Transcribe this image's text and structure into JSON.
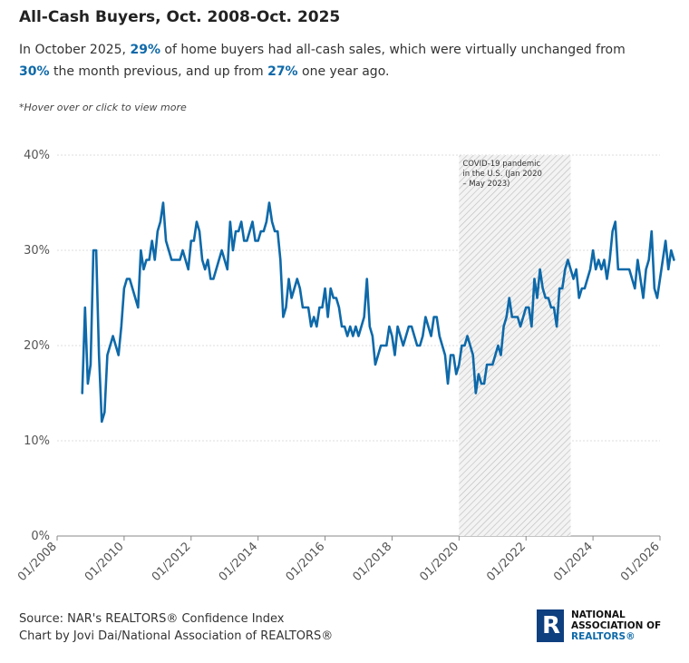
{
  "header": {
    "title": "All-Cash Buyers, Oct. 2008-Oct. 2025",
    "subtitle_parts": {
      "p1": "In October 2025, ",
      "h1": "29%",
      "p2": " of home buyers had all-cash sales, which were virtually unchanged from ",
      "h2": "30%",
      "p3": " the month previous, and up from ",
      "h3": "27%",
      "p4": " one year ago."
    },
    "hint": "*Hover over or click to view more"
  },
  "footer": {
    "source": "Source: NAR's REALTORS® Confidence Index",
    "credit": "Chart by Jovi Dai/National Association of REALTORS®"
  },
  "logo": {
    "mark": "R",
    "line1": "NATIONAL",
    "line2": "ASSOCIATION OF",
    "line3": "REALTORS®"
  },
  "colors": {
    "line": "#0e69a9",
    "highlight": "#0e69a9",
    "shade_hatch": "#bbbbbb",
    "gridline": "#dddddd",
    "logo_blue": "#0e3f7f"
  },
  "chart_data": {
    "type": "line",
    "title": "All-Cash Buyers, Oct. 2008-Oct. 2025",
    "xlabel": "",
    "ylabel": "",
    "y_unit": "%",
    "ylim": [
      0,
      40
    ],
    "yticks": [
      0,
      10,
      20,
      30,
      40
    ],
    "ytick_labels": [
      "0%",
      "10%",
      "20%",
      "30%",
      "40%"
    ],
    "x_start": "2008-10",
    "x_end": "2025-10",
    "xlim": [
      "2008-01",
      "2026-01"
    ],
    "xticks": [
      "2008-01",
      "2010-01",
      "2012-01",
      "2014-01",
      "2016-01",
      "2018-01",
      "2020-01",
      "2022-01",
      "2024-01",
      "2026-01"
    ],
    "xtick_labels": [
      "01/2008",
      "01/2010",
      "01/2012",
      "01/2014",
      "01/2016",
      "01/2018",
      "01/2020",
      "01/2022",
      "01/2024",
      "01/2026"
    ],
    "grid": "y",
    "shaded_period": {
      "start": "2020-01",
      "end": "2023-05",
      "label_lines": [
        "COVID-19 pandemic",
        "in the U.S. (Jan 2020",
        "– May 2023)"
      ]
    },
    "series": [
      {
        "values": [
          15,
          24,
          16,
          18,
          30,
          30,
          19,
          12,
          13,
          19,
          20,
          21,
          20,
          19,
          22,
          26,
          27,
          27,
          26,
          25,
          24,
          30,
          28,
          29,
          29,
          31,
          29,
          32,
          33,
          35,
          31,
          30,
          29,
          29,
          29,
          29,
          30,
          29,
          28,
          31,
          31,
          33,
          32,
          29,
          28,
          29,
          27,
          27,
          28,
          29,
          30,
          29,
          28,
          33,
          30,
          32,
          32,
          33,
          31,
          31,
          32,
          33,
          31,
          31,
          32,
          32,
          33,
          35,
          33,
          32,
          32,
          29,
          23,
          24,
          27,
          25,
          26,
          27,
          26,
          24,
          24,
          24,
          22,
          23,
          22,
          24,
          24,
          26,
          23,
          26,
          25,
          25,
          24,
          22,
          22,
          21,
          22,
          21,
          22,
          21,
          22,
          23,
          27,
          22,
          21,
          18,
          19,
          20,
          20,
          20,
          22,
          21,
          19,
          22,
          21,
          20,
          21,
          22,
          22,
          21,
          20,
          20,
          21,
          23,
          22,
          21,
          23,
          23,
          21,
          20,
          19,
          16,
          19,
          19,
          17,
          18,
          20,
          20,
          21,
          20,
          19,
          15,
          17,
          16,
          16,
          18,
          18,
          18,
          19,
          20,
          19,
          22,
          23,
          25,
          23,
          23,
          23,
          22,
          23,
          24,
          24,
          22,
          27,
          25,
          28,
          26,
          25,
          25,
          24,
          24,
          22,
          26,
          26,
          28,
          29,
          28,
          27,
          28,
          25,
          26,
          26,
          27,
          28,
          30,
          28,
          29,
          28,
          29,
          27,
          29,
          32,
          33,
          28,
          28,
          28,
          28,
          28,
          27,
          26,
          29,
          27,
          25,
          28,
          29,
          32,
          26,
          25,
          27,
          29,
          31,
          28,
          30,
          29
        ]
      }
    ]
  }
}
